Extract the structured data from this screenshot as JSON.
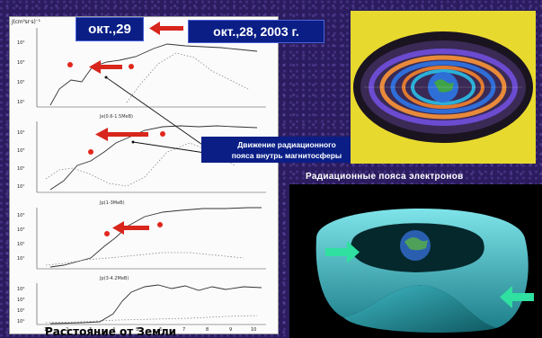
{
  "slide": {
    "ylabel": "J(cm²sr·s)⁻¹",
    "date_left": "окт.,29",
    "date_right": "окт.,28, 2003 г.",
    "note_line1": "Движение радиационного",
    "note_line2": "пояса внутрь магнитосферы",
    "belts_title": "Радиационные  пояса электронов",
    "bottom_caption": "Расстояние от Земли",
    "panels": [
      {
        "yticks": [
          "10⁴",
          "10³",
          "10²",
          "10¹",
          "10⁰"
        ],
        "caption": ""
      },
      {
        "yticks": [
          "10⁴",
          "10³",
          "10²",
          "10¹",
          "10⁰"
        ],
        "caption": "Je(0.6-1.5MeB)"
      },
      {
        "yticks": [
          "10⁴",
          "10³",
          "10²",
          "10¹",
          "10⁰"
        ],
        "caption": "Jp(1-3MeB)"
      },
      {
        "yticks": [
          "10⁴",
          "10³",
          "10²",
          "10¹"
        ],
        "caption": "Jp(3-4.2MeB)"
      }
    ],
    "xticks": [
      "1",
      "2",
      "3",
      "4",
      "5",
      "6",
      "7",
      "8",
      "9",
      "10"
    ],
    "colors": {
      "background": "#2a1c5e",
      "label_box": "#0a1e86",
      "arrow": "#d8261c",
      "torus": "#4fd0d8",
      "green_arrow": "#2fe0a0"
    }
  }
}
